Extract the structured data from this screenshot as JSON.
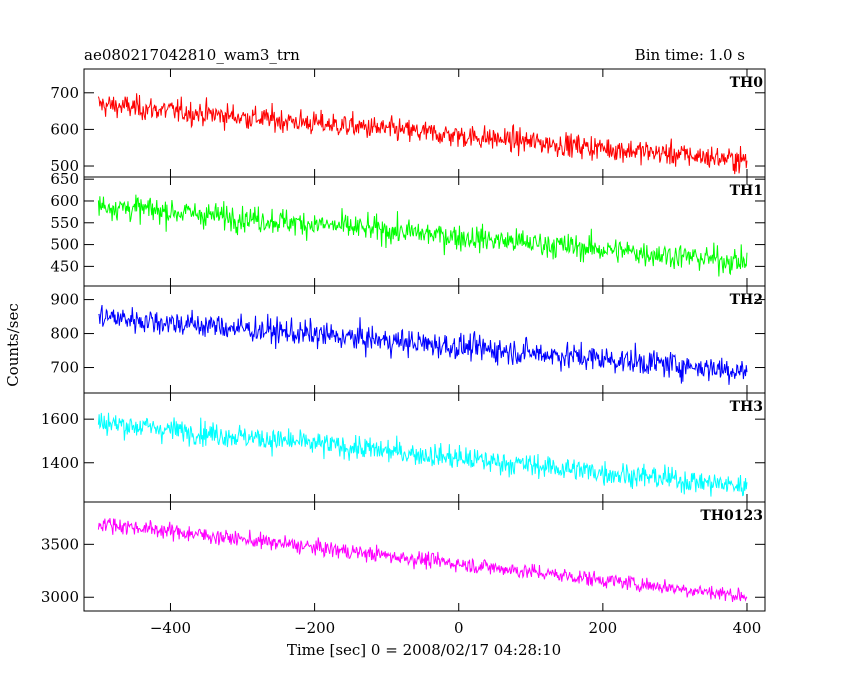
{
  "chart_data": {
    "type": "line",
    "title": "ae080217042810_wam3_trn",
    "bin_time_label": "Bin time: 1.0 s",
    "xlabel": "Time [sec] 0 = 2008/02/17 04:28:10",
    "ylabel": "Counts/sec",
    "x_range": [
      -500,
      400
    ],
    "xlim": [
      -520,
      425
    ],
    "x_ticks": [
      -400,
      -200,
      0,
      200,
      400
    ],
    "x_tick_labels": [
      "−400",
      "−200",
      "0",
      "200",
      "400"
    ],
    "grid": false,
    "panels": [
      {
        "name": "TH0",
        "color": "#ff0000",
        "ylim": [
          470,
          765
        ],
        "y_ticks": [
          500,
          600,
          700
        ],
        "y_tick_labels": [
          "500",
          "600",
          "700"
        ],
        "trend_start": 668,
        "trend_end": 515,
        "noise_amplitude": 42
      },
      {
        "name": "TH1",
        "color": "#00ff00",
        "ylim": [
          405,
          655
        ],
        "y_ticks": [
          450,
          500,
          550,
          600,
          650
        ],
        "y_tick_labels": [
          "450",
          "500",
          "550",
          "600",
          "650"
        ],
        "trend_start": 590,
        "trend_end": 460,
        "noise_amplitude": 38
      },
      {
        "name": "TH2",
        "color": "#0000ff",
        "ylim": [
          625,
          940
        ],
        "y_ticks": [
          700,
          800,
          900
        ],
        "y_tick_labels": [
          "700",
          "800",
          "900"
        ],
        "trend_start": 850,
        "trend_end": 690,
        "noise_amplitude": 50
      },
      {
        "name": "TH3",
        "color": "#00ffff",
        "ylim": [
          1220,
          1720
        ],
        "y_ticks": [
          1400,
          1600
        ],
        "y_tick_labels": [
          "1400",
          "1600"
        ],
        "trend_start": 1585,
        "trend_end": 1290,
        "noise_amplitude": 70
      },
      {
        "name": "TH0123",
        "color": "#ff00ff",
        "ylim": [
          2870,
          3900
        ],
        "y_ticks": [
          3000,
          3500
        ],
        "y_tick_labels": [
          "3000",
          "3500"
        ],
        "trend_start": 3700,
        "trend_end": 3010,
        "noise_amplitude": 95
      }
    ]
  }
}
